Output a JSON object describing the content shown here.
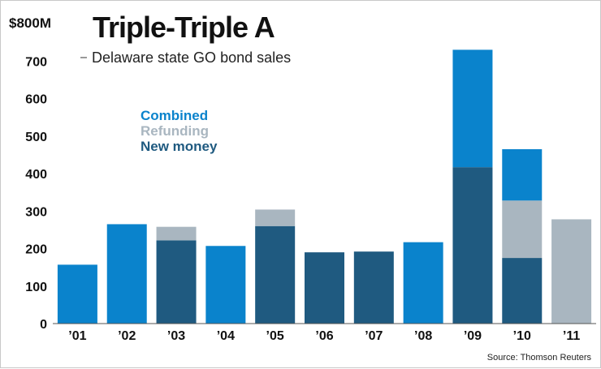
{
  "chart_data": {
    "type": "bar",
    "stacked": true,
    "title": "Triple-Triple A",
    "subtitle": "Delaware state GO bond sales",
    "ylabel_top": "$800M",
    "ylim": [
      0,
      800
    ],
    "yticks": [
      0,
      100,
      200,
      300,
      400,
      500,
      600,
      700
    ],
    "categories": [
      "’01",
      "’02",
      "’03",
      "’04",
      "’05",
      "’06",
      "’07",
      "’08",
      "’09",
      "’10",
      "’11"
    ],
    "series": [
      {
        "name": "New money",
        "color": "#1f5a80",
        "values": [
          0,
          0,
          222,
          0,
          260,
          190,
          192,
          0,
          417,
          175,
          0
        ]
      },
      {
        "name": "Refunding",
        "color": "#a9b6c0",
        "values": [
          0,
          0,
          36,
          0,
          44,
          0,
          0,
          0,
          0,
          153,
          278
        ]
      },
      {
        "name": "Combined",
        "color": "#0a83cc",
        "values": [
          157,
          265,
          0,
          207,
          0,
          0,
          0,
          217,
          313,
          137,
          0
        ]
      }
    ],
    "legend": [
      {
        "label": "Combined",
        "color": "#0a83cc"
      },
      {
        "label": "Refunding",
        "color": "#a9b6c0"
      },
      {
        "label": "New money",
        "color": "#1f5a80"
      }
    ],
    "legend_position": "upper-left",
    "grid": false,
    "source": "Source: Thomson Reuters"
  }
}
